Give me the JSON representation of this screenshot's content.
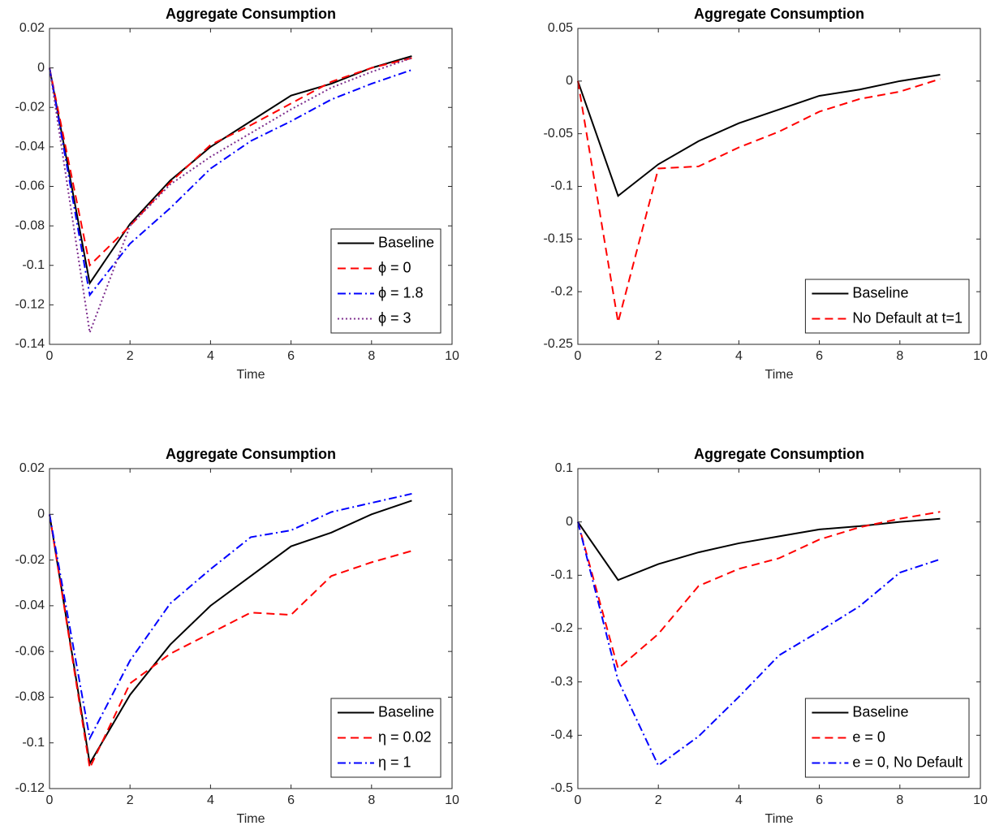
{
  "chart_data": [
    {
      "type": "line",
      "title": "Aggregate Consumption",
      "xlabel": "Time",
      "x": [
        0,
        1,
        2,
        3,
        4,
        5,
        6,
        7,
        8,
        9
      ],
      "xlim": [
        0,
        10
      ],
      "xticks": [
        0,
        2,
        4,
        6,
        8,
        10
      ],
      "ylim": [
        -0.14,
        0.02
      ],
      "yticks": [
        -0.14,
        -0.12,
        -0.1,
        -0.08,
        -0.06,
        -0.04,
        -0.02,
        0,
        0.02
      ],
      "legend": "lower right",
      "series": [
        {
          "name": "Baseline",
          "color": "#000000",
          "linestyle": "solid",
          "values": [
            0,
            -0.109,
            -0.079,
            -0.057,
            -0.04,
            -0.027,
            -0.014,
            -0.008,
            0.0,
            0.006
          ]
        },
        {
          "name": "ϕ = 0",
          "color": "#ff0000",
          "linestyle": "dashed",
          "values": [
            0,
            -0.1,
            -0.08,
            -0.058,
            -0.039,
            -0.029,
            -0.018,
            -0.007,
            0.0,
            0.005
          ]
        },
        {
          "name": "ϕ = 1.8",
          "color": "#0000ff",
          "linestyle": "dashdot",
          "values": [
            0,
            -0.115,
            -0.089,
            -0.071,
            -0.051,
            -0.037,
            -0.027,
            -0.016,
            -0.008,
            -0.001
          ]
        },
        {
          "name": "ϕ = 3",
          "color": "#7e2f8e",
          "linestyle": "dotted",
          "values": [
            0,
            -0.134,
            -0.08,
            -0.059,
            -0.045,
            -0.033,
            -0.021,
            -0.01,
            -0.002,
            0.005
          ]
        }
      ]
    },
    {
      "type": "line",
      "title": "Aggregate Consumption",
      "xlabel": "Time",
      "x": [
        0,
        1,
        2,
        3,
        4,
        5,
        6,
        7,
        8,
        9
      ],
      "xlim": [
        0,
        10
      ],
      "xticks": [
        0,
        2,
        4,
        6,
        8,
        10
      ],
      "ylim": [
        -0.25,
        0.05
      ],
      "yticks": [
        -0.25,
        -0.2,
        -0.15,
        -0.1,
        -0.05,
        0,
        0.05
      ],
      "legend": "lower right",
      "series": [
        {
          "name": "Baseline",
          "color": "#000000",
          "linestyle": "solid",
          "values": [
            0,
            -0.109,
            -0.079,
            -0.057,
            -0.04,
            -0.027,
            -0.014,
            -0.008,
            0.0,
            0.006
          ]
        },
        {
          "name": "No Default at t=1",
          "color": "#ff0000",
          "linestyle": "dashed",
          "values": [
            0,
            -0.229,
            -0.083,
            -0.081,
            -0.063,
            -0.048,
            -0.029,
            -0.017,
            -0.01,
            0.002
          ]
        }
      ]
    },
    {
      "type": "line",
      "title": "Aggregate Consumption",
      "xlabel": "Time",
      "x": [
        0,
        1,
        2,
        3,
        4,
        5,
        6,
        7,
        8,
        9
      ],
      "xlim": [
        0,
        10
      ],
      "xticks": [
        0,
        2,
        4,
        6,
        8,
        10
      ],
      "ylim": [
        -0.12,
        0.02
      ],
      "yticks": [
        -0.12,
        -0.1,
        -0.08,
        -0.06,
        -0.04,
        -0.02,
        0,
        0.02
      ],
      "legend": "lower right",
      "series": [
        {
          "name": "Baseline",
          "color": "#000000",
          "linestyle": "solid",
          "values": [
            0,
            -0.109,
            -0.079,
            -0.057,
            -0.04,
            -0.027,
            -0.014,
            -0.008,
            0.0,
            0.006
          ]
        },
        {
          "name": "η = 0.02",
          "color": "#ff0000",
          "linestyle": "dashed",
          "values": [
            0,
            -0.111,
            -0.074,
            -0.061,
            -0.052,
            -0.043,
            -0.044,
            -0.027,
            -0.021,
            -0.016
          ]
        },
        {
          "name": "η = 1",
          "color": "#0000ff",
          "linestyle": "dashdot",
          "values": [
            0,
            -0.098,
            -0.064,
            -0.039,
            -0.024,
            -0.01,
            -0.007,
            0.001,
            0.005,
            0.009
          ]
        }
      ]
    },
    {
      "type": "line",
      "title": "Aggregate Consumption",
      "xlabel": "Time",
      "x": [
        0,
        1,
        2,
        3,
        4,
        5,
        6,
        7,
        8,
        9
      ],
      "xlim": [
        0,
        10
      ],
      "xticks": [
        0,
        2,
        4,
        6,
        8,
        10
      ],
      "ylim": [
        -0.5,
        0.1
      ],
      "yticks": [
        -0.5,
        -0.4,
        -0.3,
        -0.2,
        -0.1,
        0,
        0.1
      ],
      "legend": "lower right",
      "series": [
        {
          "name": "Baseline",
          "color": "#000000",
          "linestyle": "solid",
          "values": [
            0,
            -0.109,
            -0.079,
            -0.057,
            -0.04,
            -0.027,
            -0.014,
            -0.008,
            0.0,
            0.006
          ]
        },
        {
          "name": "e = 0",
          "color": "#ff0000",
          "linestyle": "dashed",
          "values": [
            0,
            -0.275,
            -0.21,
            -0.12,
            -0.088,
            -0.068,
            -0.033,
            -0.01,
            0.006,
            0.019
          ]
        },
        {
          "name": "e = 0, No Default",
          "color": "#0000ff",
          "linestyle": "dashdot",
          "values": [
            0,
            -0.297,
            -0.457,
            -0.402,
            -0.328,
            -0.25,
            -0.205,
            -0.158,
            -0.095,
            -0.07
          ]
        }
      ]
    }
  ]
}
